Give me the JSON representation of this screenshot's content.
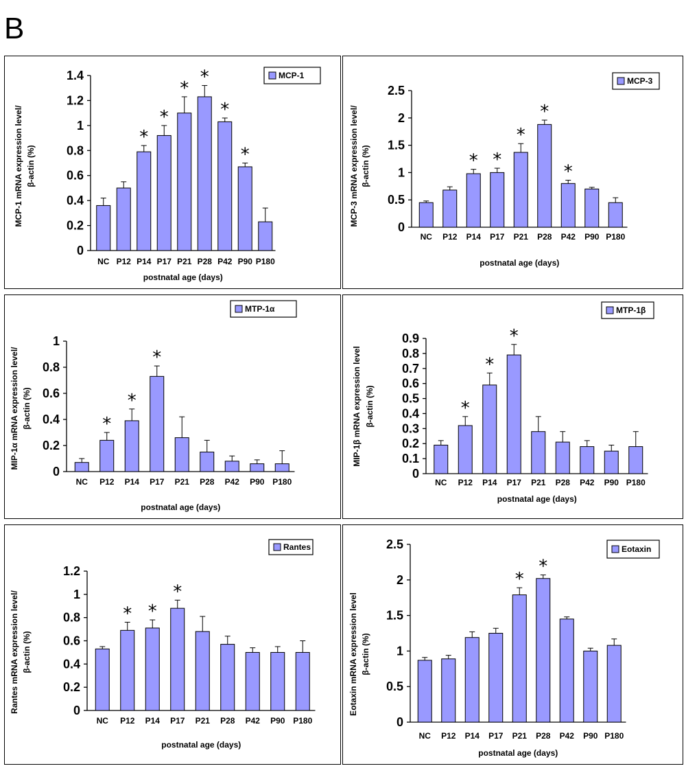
{
  "figure_letter": "B",
  "chart_data": [
    {
      "type": "bar",
      "legend": "MCP-1",
      "ylabel_line1": "MCP-1 mRNA expression level/",
      "ylabel_line2": "β-actin (%)",
      "xlabel": "postnatal age (days)",
      "categories": [
        "NC",
        "P12",
        "P14",
        "P17",
        "P21",
        "P28",
        "P42",
        "P90",
        "P180"
      ],
      "values": [
        0.36,
        0.5,
        0.79,
        0.92,
        1.1,
        1.23,
        1.03,
        0.67,
        0.23
      ],
      "errors": [
        0.06,
        0.05,
        0.05,
        0.08,
        0.13,
        0.09,
        0.03,
        0.03,
        0.11
      ],
      "significant": [
        false,
        false,
        true,
        true,
        true,
        true,
        true,
        true,
        false
      ],
      "ylim": [
        0,
        1.4
      ],
      "yticks": [
        "0",
        "0.2",
        "0.4",
        "0.6",
        "0.8",
        "1",
        "1.2",
        "1.4"
      ],
      "grid": false,
      "legend_position": "top-right",
      "bar_color": "#9999ff"
    },
    {
      "type": "bar",
      "legend": "MCP-3",
      "ylabel_line1": "MCP-3 mRNA expression level/",
      "ylabel_line2": "β-actin (%)",
      "xlabel": "postnatal age (days)",
      "categories": [
        "NC",
        "P12",
        "P14",
        "P17",
        "P21",
        "P28",
        "P42",
        "P90",
        "P180"
      ],
      "values": [
        0.45,
        0.68,
        0.98,
        1.0,
        1.37,
        1.88,
        0.8,
        0.7,
        0.45
      ],
      "errors": [
        0.03,
        0.06,
        0.08,
        0.08,
        0.16,
        0.08,
        0.06,
        0.03,
        0.09
      ],
      "significant": [
        false,
        false,
        true,
        true,
        true,
        true,
        true,
        false,
        false
      ],
      "ylim": [
        0,
        2.5
      ],
      "yticks": [
        "0",
        "0.5",
        "1",
        "1.5",
        "2",
        "2.5"
      ],
      "grid": false,
      "legend_position": "top-right",
      "bar_color": "#9999ff"
    },
    {
      "type": "bar",
      "legend": "MTP-1α",
      "ylabel_line1": "MIP-1α mRNA expression level/",
      "ylabel_line2": "β-actin (%)",
      "xlabel": "postnatal age (days)",
      "categories": [
        "NC",
        "P12",
        "P14",
        "P17",
        "P21",
        "P28",
        "P42",
        "P90",
        "P180"
      ],
      "values": [
        0.07,
        0.24,
        0.39,
        0.73,
        0.26,
        0.15,
        0.08,
        0.06,
        0.06
      ],
      "errors": [
        0.03,
        0.06,
        0.09,
        0.08,
        0.16,
        0.09,
        0.04,
        0.03,
        0.1
      ],
      "significant": [
        false,
        true,
        true,
        true,
        false,
        false,
        false,
        false,
        false
      ],
      "ylim": [
        0,
        1
      ],
      "yticks": [
        "0",
        "0.2",
        "0.4",
        "0.6",
        "0.8",
        "1"
      ],
      "grid": false,
      "legend_position": "top-right",
      "bar_color": "#9999ff"
    },
    {
      "type": "bar",
      "legend": "MTP-1β",
      "ylabel_line1": "MIP-1β mRNA expression level",
      "ylabel_line2": "β-actin (%)",
      "xlabel": "postnatal age (days)",
      "categories": [
        "NC",
        "P12",
        "P14",
        "P17",
        "P21",
        "P28",
        "P42",
        "P90",
        "P180"
      ],
      "values": [
        0.19,
        0.32,
        0.59,
        0.79,
        0.28,
        0.21,
        0.18,
        0.15,
        0.18
      ],
      "errors": [
        0.03,
        0.06,
        0.08,
        0.07,
        0.1,
        0.07,
        0.04,
        0.04,
        0.1
      ],
      "significant": [
        false,
        true,
        true,
        true,
        false,
        false,
        false,
        false,
        false
      ],
      "ylim": [
        0,
        0.9
      ],
      "yticks": [
        "0",
        "0.1",
        "0.2",
        "0.3",
        "0.4",
        "0.5",
        "0.6",
        "0.7",
        "0.8",
        "0.9"
      ],
      "grid": false,
      "legend_position": "top-right",
      "bar_color": "#9999ff"
    },
    {
      "type": "bar",
      "legend": "Rantes",
      "ylabel_line1": "Rantes mRNA expression level/",
      "ylabel_line2": "β-actin (%)",
      "xlabel": "postnatal age (days)",
      "categories": [
        "NC",
        "P12",
        "P14",
        "P17",
        "P21",
        "P28",
        "P42",
        "P90",
        "P180"
      ],
      "values": [
        0.53,
        0.69,
        0.71,
        0.88,
        0.68,
        0.57,
        0.5,
        0.5,
        0.5
      ],
      "errors": [
        0.02,
        0.07,
        0.07,
        0.07,
        0.13,
        0.07,
        0.04,
        0.05,
        0.1
      ],
      "significant": [
        false,
        true,
        true,
        true,
        false,
        false,
        false,
        false,
        false
      ],
      "ylim": [
        0,
        1.2
      ],
      "yticks": [
        "0",
        "0.2",
        "0.4",
        "0.6",
        "0.8",
        "1",
        "1.2"
      ],
      "grid": false,
      "legend_position": "top-right",
      "bar_color": "#9999ff"
    },
    {
      "type": "bar",
      "legend": "Eotaxin",
      "ylabel_line1": "Eotaxin mRNA expression level",
      "ylabel_line2": "β-actin (%)",
      "xlabel": "postnatal age (days)",
      "categories": [
        "NC",
        "P12",
        "P14",
        "P17",
        "P21",
        "P28",
        "P42",
        "P90",
        "P180"
      ],
      "values": [
        0.87,
        0.89,
        1.19,
        1.25,
        1.79,
        2.02,
        1.45,
        1.0,
        1.08
      ],
      "errors": [
        0.04,
        0.05,
        0.08,
        0.07,
        0.1,
        0.05,
        0.03,
        0.04,
        0.09
      ],
      "significant": [
        false,
        false,
        false,
        false,
        true,
        true,
        false,
        false,
        false
      ],
      "ylim": [
        0,
        2.5
      ],
      "yticks": [
        "0",
        "0.5",
        "1",
        "1.5",
        "2",
        "2.5"
      ],
      "grid": false,
      "legend_position": "top-right",
      "bar_color": "#9999ff"
    }
  ]
}
